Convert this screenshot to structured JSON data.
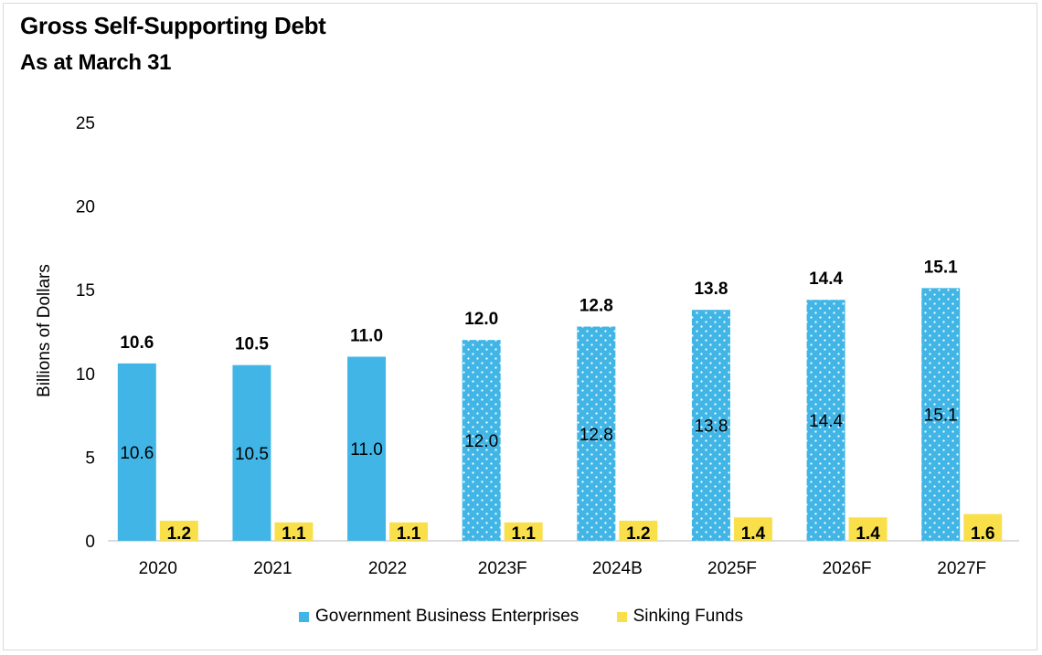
{
  "chart_data": {
    "type": "bar",
    "title": "Gross Self-Supporting Debt",
    "subtitle": "As at March 31",
    "ylabel": "Billions of Dollars",
    "xlabel": "",
    "ylim": [
      0,
      25
    ],
    "yticks": [
      0,
      5,
      10,
      15,
      20,
      25
    ],
    "grid": false,
    "legend_position": "bottom",
    "categories": [
      "2020",
      "2021",
      "2022",
      "2023F",
      "2024B",
      "2025F",
      "2026F",
      "2027F"
    ],
    "series": [
      {
        "name": "Government Business Enterprises",
        "color": "#41b6e6",
        "values": [
          10.6,
          10.5,
          11.0,
          12.0,
          12.8,
          13.8,
          14.4,
          15.1
        ],
        "labels": [
          "10.6",
          "10.5",
          "11.0",
          "12.0",
          "12.8",
          "13.8",
          "14.4",
          "15.1"
        ],
        "dotted_from_index": 3
      },
      {
        "name": "Sinking Funds",
        "color": "#f9e04b",
        "values": [
          1.2,
          1.1,
          1.1,
          1.1,
          1.2,
          1.4,
          1.4,
          1.6
        ],
        "labels": [
          "1.2",
          "1.1",
          "1.1",
          "1.1",
          "1.2",
          "1.4",
          "1.4",
          "1.6"
        ]
      }
    ],
    "total_labels": [
      "10.6",
      "10.5",
      "11.0",
      "12.0",
      "12.8",
      "13.8",
      "14.4",
      "15.1"
    ]
  }
}
